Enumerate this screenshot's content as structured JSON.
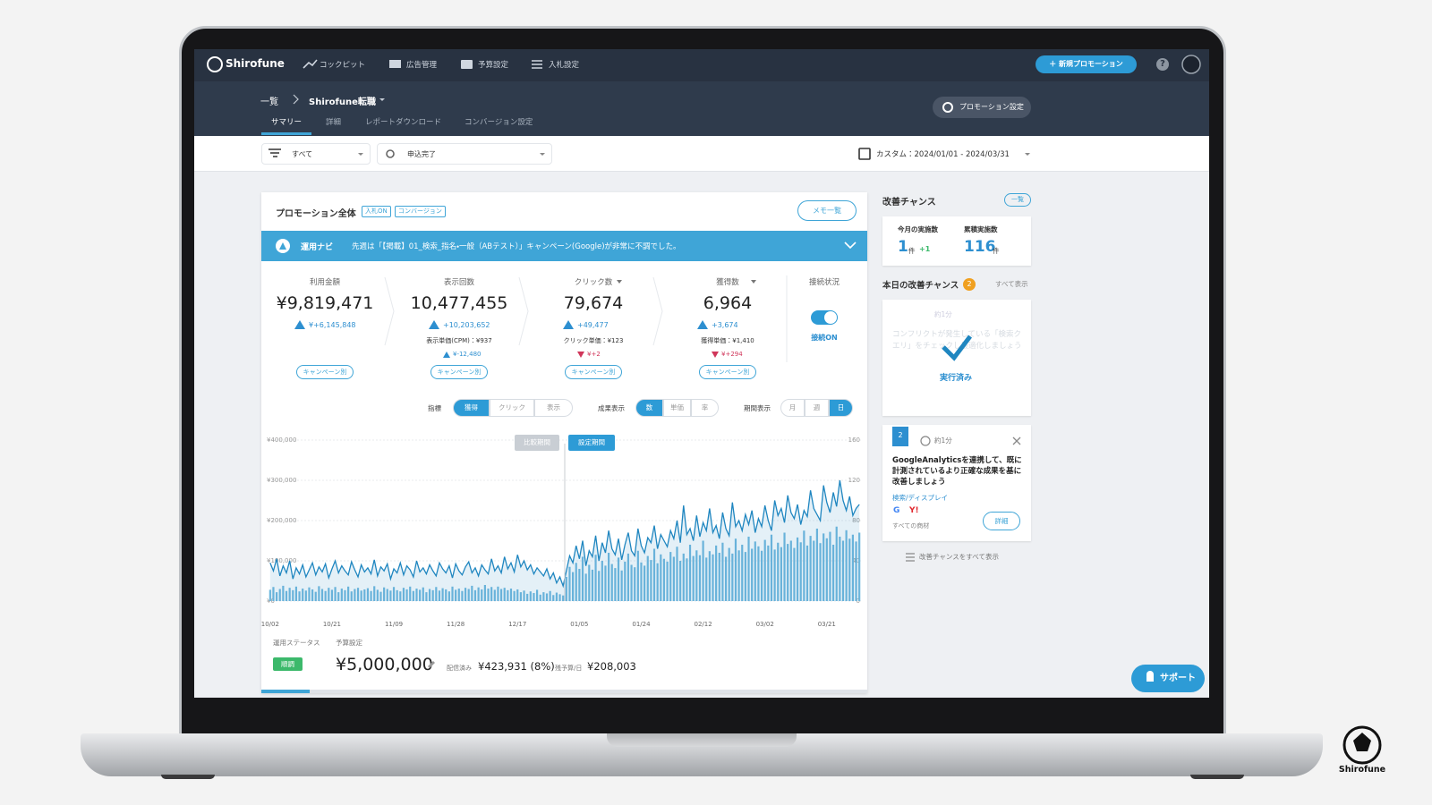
{
  "header": {
    "logo": "Shirofune",
    "nav": [
      "コックピット",
      "広告管理",
      "予算設定",
      "入札設定"
    ],
    "new_button": "＋ 新規プロモーション",
    "help_icon": "?"
  },
  "subheader": {
    "breadcrumb": [
      "一覧",
      "Shirofune転職"
    ],
    "tabs": [
      "サマリー",
      "詳細",
      "レポートダウンロード",
      "コンバージョン設定"
    ],
    "active_tab": 0,
    "settings_button": "プロモーション設定"
  },
  "filters": {
    "segment": "すべて",
    "conversion": "申込完了",
    "date_range": "カスタム：2024/01/01 - 2024/03/31"
  },
  "promotion": {
    "title": "プロモーション全体",
    "tags": [
      "入札ON",
      "コンバージョン"
    ],
    "memo_button": "メモ一覧",
    "navi_label": "運用ナビ",
    "navi_message": "先週は「【掲載】01_検索_指名・一般（ABテスト）」キャンペーン(Google)が非常に不調でした。",
    "metrics": [
      {
        "label": "利用金額",
        "value": "¥9,819,471",
        "change": {
          "trend": "up",
          "text": "¥+6,145,848"
        },
        "button": "キャンペーン別"
      },
      {
        "label": "表示回数",
        "value": "10,477,455",
        "change": {
          "trend": "up",
          "text": "+10,203,652"
        },
        "unit_cost": "表示単価(CPM)：¥937",
        "unit_change": {
          "trend": "up",
          "text": "¥-12,480"
        },
        "button": "キャンペーン別"
      },
      {
        "label": "クリック数",
        "dropdown": true,
        "value": "79,674",
        "change": {
          "trend": "up",
          "text": "+49,477"
        },
        "unit_cost": "クリック単価：¥123",
        "unit_change": {
          "trend": "down",
          "text": "¥+2"
        },
        "button": "キャンペーン別"
      },
      {
        "label": "獲得数",
        "dropdown": true,
        "value": "6,964",
        "change": {
          "trend": "up",
          "text": "+3,674"
        },
        "unit_cost": "獲得単価：¥1,410",
        "unit_change": {
          "trend": "down",
          "text": "¥+294"
        },
        "button": "キャンペーン別"
      }
    ],
    "connection": {
      "label": "接続状況",
      "status": "接続ON",
      "on": true
    },
    "controls": [
      {
        "label": "指標",
        "options": [
          "獲得",
          "クリック",
          "表示"
        ],
        "active": 0
      },
      {
        "label": "成果表示",
        "options": [
          "数",
          "単価",
          "率"
        ],
        "active": 0
      },
      {
        "label": "期間表示",
        "options": [
          "月",
          "週",
          "日"
        ],
        "active": 2
      }
    ],
    "status": {
      "label": "運用ステータス",
      "value": "順調",
      "budget_label": "予算設定",
      "budget": "¥5,000,000",
      "delivered_label": "配信済み",
      "delivered": "¥423,931 (8%)",
      "remaining_label": "残予算/日",
      "remaining": "¥208,003"
    }
  },
  "chart_data": {
    "type": "combo",
    "annotations": [
      "比較期間",
      "設定期間"
    ],
    "grid": true,
    "categories": [
      "10/02",
      null,
      null,
      null,
      null,
      null,
      null,
      null,
      null,
      null,
      null,
      null,
      null,
      null,
      null,
      null,
      null,
      null,
      null,
      "10/21",
      null,
      null,
      null,
      null,
      null,
      null,
      null,
      null,
      null,
      null,
      null,
      null,
      null,
      null,
      null,
      null,
      null,
      null,
      "11/09",
      null,
      null,
      null,
      null,
      null,
      null,
      null,
      null,
      null,
      null,
      null,
      null,
      null,
      null,
      null,
      null,
      null,
      null,
      "11/28",
      null,
      null,
      null,
      null,
      null,
      null,
      null,
      null,
      null,
      null,
      null,
      null,
      null,
      null,
      null,
      null,
      null,
      null,
      "12/17",
      null,
      null,
      null,
      null,
      null,
      null,
      null,
      null,
      null,
      null,
      null,
      null,
      null,
      null,
      null,
      null,
      null,
      null,
      "01/05",
      null,
      null,
      null,
      null,
      null,
      null,
      null,
      null,
      null,
      null,
      null,
      null,
      null,
      null,
      null,
      null,
      null,
      null,
      "01/24",
      null,
      null,
      null,
      null,
      null,
      null,
      null,
      null,
      null,
      null,
      null,
      null,
      null,
      null,
      null,
      null,
      null,
      null,
      "02/12",
      null,
      null,
      null,
      null,
      null,
      null,
      null,
      null,
      null,
      null,
      null,
      null,
      null,
      null,
      null,
      null,
      null,
      null,
      "03/02",
      null,
      null,
      null,
      null,
      null,
      null,
      null,
      null,
      null,
      null,
      null,
      null,
      null,
      null,
      null,
      null,
      null,
      null,
      "03/21",
      null,
      null,
      null,
      null,
      null,
      null,
      null,
      null,
      null,
      null
    ],
    "ylim": [
      0,
      400000
    ],
    "yticks": [
      {
        "value": 0,
        "label": "¥0"
      },
      {
        "value": 100000,
        "label": "¥100,000"
      },
      {
        "value": 200000,
        "label": "¥200,000"
      },
      {
        "value": 300000,
        "label": "¥300,000"
      },
      {
        "value": 400000,
        "label": "¥400,000"
      }
    ],
    "y2lim": [
      0,
      160
    ],
    "y2ticks": [
      0,
      40,
      80,
      120,
      160
    ],
    "series": [
      {
        "type": "bar",
        "color": "#72b9de",
        "values": [
          28000,
          35000,
          22000,
          30000,
          38000,
          25000,
          33000,
          27000,
          36000,
          24000,
          31000,
          26000,
          34000,
          29000,
          23000,
          37000,
          30000,
          25000,
          33000,
          28000,
          35000,
          22000,
          31000,
          27000,
          36000,
          24000,
          30000,
          33000,
          26000,
          29000,
          32000,
          25000,
          37000,
          28000,
          23000,
          34000,
          30000,
          26000,
          35000,
          27000,
          24000,
          33000,
          29000,
          36000,
          25000,
          31000,
          28000,
          34000,
          22000,
          30000,
          27000,
          35000,
          26000,
          32000,
          29000,
          24000,
          36000,
          28000,
          31000,
          25000,
          33000,
          30000,
          38000,
          27000,
          34000,
          29000,
          40000,
          31000,
          35000,
          28000,
          36000,
          30000,
          33000,
          27000,
          31000,
          25000,
          29000,
          22000,
          26000,
          18000,
          24000,
          20000,
          28000,
          16000,
          22000,
          19000,
          25000,
          15000,
          21000,
          17000,
          14000,
          60000,
          85000,
          72000,
          95000,
          80000,
          110000,
          68000,
          90000,
          78000,
          115000,
          75000,
          100000,
          88000,
          120000,
          92000,
          82000,
          108000,
          76000,
          98000,
          118000,
          90000,
          84000,
          125000,
          96000,
          88000,
          112000,
          102000,
          130000,
          94000,
          116000,
          105000,
          98000,
          122000,
          110000,
          135000,
          100000,
          118000,
          106000,
          140000,
          112000,
          126000,
          114000,
          150000,
          108000,
          124000,
          116000,
          138000,
          120000,
          145000,
          110000,
          132000,
          118000,
          155000,
          126000,
          140000,
          122000,
          160000,
          130000,
          148000,
          136000,
          125000,
          152000,
          138000,
          165000,
          128000,
          145000,
          134000,
          170000,
          142000,
          150000,
          132000,
          158000,
          146000,
          175000,
          138000,
          162000,
          150000,
          180000,
          144000,
          168000,
          156000,
          172000,
          140000,
          185000,
          160000,
          150000,
          176000,
          155000,
          165000,
          148000,
          170000
        ]
      },
      {
        "type": "line",
        "axis": "y2",
        "color": "#1f86c0",
        "values": [
          38,
          30,
          42,
          25,
          35,
          28,
          40,
          22,
          33,
          27,
          36,
          24,
          31,
          38,
          26,
          34,
          29,
          37,
          23,
          32,
          40,
          28,
          35,
          30,
          26,
          39,
          31,
          24,
          36,
          29,
          33,
          27,
          41,
          25,
          34,
          30,
          37,
          22,
          32,
          28,
          38,
          26,
          35,
          31,
          24,
          40,
          29,
          33,
          27,
          36,
          30,
          25,
          38,
          32,
          28,
          35,
          23,
          37,
          30,
          26,
          34,
          39,
          28,
          33,
          25,
          36,
          31,
          27,
          42,
          30,
          35,
          28,
          44,
          32,
          38,
          29,
          46,
          34,
          40,
          31,
          36,
          27,
          33,
          29,
          25,
          32,
          22,
          28,
          18,
          24,
          15,
          30,
          45,
          38,
          55,
          42,
          60,
          35,
          50,
          44,
          65,
          40,
          58,
          48,
          70,
          52,
          46,
          62,
          41,
          56,
          68,
          50,
          45,
          72,
          55,
          48,
          63,
          58,
          75,
          52,
          66,
          60,
          54,
          70,
          62,
          80,
          58,
          95,
          66,
          72,
          60,
          85,
          64,
          78,
          70,
          92,
          68,
          75,
          62,
          88,
          72,
          65,
          98,
          74,
          80,
          70,
          86,
          76,
          90,
          68,
          82,
          74,
          95,
          80,
          70,
          100,
          85,
          92,
          78,
          105,
          88,
          82,
          96,
          76,
          90,
          84,
          110,
          92,
          86,
          80,
          115,
          98,
          88,
          108,
          94,
          120,
          100,
          90,
          104,
          85,
          92,
          96
        ]
      }
    ]
  },
  "sidebar": {
    "title": "改善チャンス",
    "list_button": "一覧",
    "stats": [
      {
        "label": "今月の実施数",
        "value": "1",
        "unit": "件",
        "delta": "+1"
      },
      {
        "label": "累積実施数",
        "value": "116",
        "unit": "件"
      }
    ],
    "today_title": "本日の改善チャンス",
    "today_count": 2,
    "show_all": "すべて表示",
    "cards": [
      {
        "time": "約1分",
        "message": "コンフリクトが発生している「検索クエリ」をチェックし最適化しましょう",
        "status": "実行済み"
      },
      {
        "number": "2",
        "time": "約1分",
        "message": "GoogleAnalyticsを連携して、既に計測されているより正確な成果を基に改善しましょう",
        "category": "検索/ディスプレイ",
        "platforms": [
          "G",
          "Y!"
        ],
        "scope": "すべての商材",
        "button": "詳細"
      }
    ],
    "footer_link": "改善チャンスをすべて表示"
  },
  "support_button": "サポート",
  "brand": "Shirofune"
}
